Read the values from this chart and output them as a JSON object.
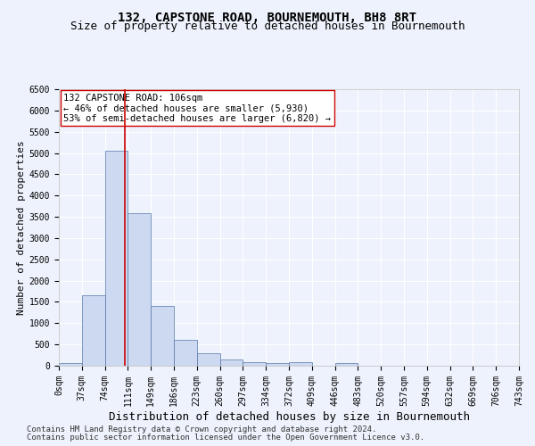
{
  "title": "132, CAPSTONE ROAD, BOURNEMOUTH, BH8 8RT",
  "subtitle": "Size of property relative to detached houses in Bournemouth",
  "xlabel": "Distribution of detached houses by size in Bournemouth",
  "ylabel": "Number of detached properties",
  "bin_labels": [
    "0sqm",
    "37sqm",
    "74sqm",
    "111sqm",
    "149sqm",
    "186sqm",
    "223sqm",
    "260sqm",
    "297sqm",
    "334sqm",
    "372sqm",
    "409sqm",
    "446sqm",
    "483sqm",
    "520sqm",
    "557sqm",
    "594sqm",
    "632sqm",
    "669sqm",
    "706sqm",
    "743sqm"
  ],
  "bar_values": [
    70,
    1650,
    5060,
    3590,
    1400,
    610,
    290,
    145,
    90,
    55,
    90,
    0,
    55,
    0,
    0,
    0,
    0,
    0,
    0,
    0
  ],
  "bar_color": "#ccd9f0",
  "bar_edge_color": "#5577aa",
  "vline_color": "#cc0000",
  "annotation_text": "132 CAPSTONE ROAD: 106sqm\n← 46% of detached houses are smaller (5,930)\n53% of semi-detached houses are larger (6,820) →",
  "annotation_box_color": "#ffffff",
  "annotation_box_edge": "#cc0000",
  "ylim": [
    0,
    6500
  ],
  "yticks": [
    0,
    500,
    1000,
    1500,
    2000,
    2500,
    3000,
    3500,
    4000,
    4500,
    5000,
    5500,
    6000,
    6500
  ],
  "footer_line1": "Contains HM Land Registry data © Crown copyright and database right 2024.",
  "footer_line2": "Contains public sector information licensed under the Open Government Licence v3.0.",
  "bg_color": "#eef2fc",
  "grid_color": "#ffffff",
  "title_fontsize": 10,
  "subtitle_fontsize": 9,
  "ylabel_fontsize": 8,
  "xlabel_fontsize": 9,
  "tick_fontsize": 7,
  "annotation_fontsize": 7.5,
  "footer_fontsize": 6.5
}
